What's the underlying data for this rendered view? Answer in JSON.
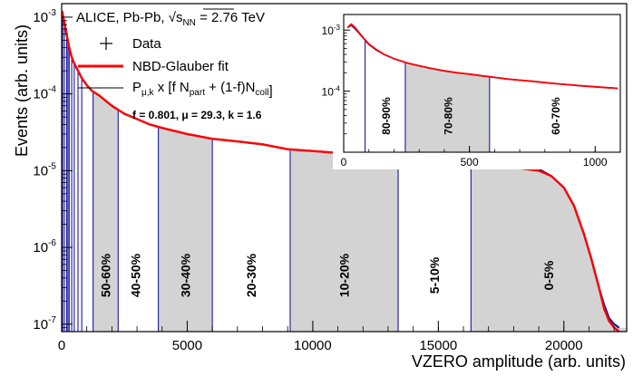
{
  "colors": {
    "data": "#1a1a8c",
    "fit": "#ff0000",
    "band_fill": "#d3d3d3",
    "band_edge": "#1a1aa0",
    "axis": "#000000"
  },
  "legend": {
    "title_prefix": "ALICE, Pb-Pb,",
    "sqrt_s": "s",
    "sqrt_s_sub": "NN",
    "energy": "= 2.76 TeV",
    "data_label": "Data",
    "fit_label": "NBD-Glauber fit",
    "model_P": "P",
    "model_P_sub": "μ,k",
    "model_mid1": "x [f N",
    "model_sub1": "part",
    "model_mid2": "+ (1-f)N",
    "model_sub2": "coll",
    "model_end": "]",
    "params": "f = 0.801,  μ = 29.3, k = 1.6"
  },
  "chart_data": [
    {
      "type": "line",
      "xlabel": "VZERO amplitude (arb. units)",
      "ylabel": "Events (arb. units)",
      "xlim": [
        0,
        22500
      ],
      "ylim": [
        8e-08,
        0.0015
      ],
      "yscale": "log",
      "xticks": [
        0,
        5000,
        10000,
        15000,
        20000
      ],
      "xtick_labels": [
        "0",
        "5000",
        "10000",
        "15000",
        "20000"
      ],
      "yticks": [
        1e-07,
        1e-06,
        1e-05,
        0.0001,
        0.001
      ],
      "ytick_labels": [
        [
          "10",
          "-7"
        ],
        [
          "10",
          "-6"
        ],
        [
          "10",
          "-5"
        ],
        [
          "10",
          "-4"
        ],
        [
          "10",
          "-3"
        ]
      ],
      "series": [
        {
          "name": "Data",
          "style": "data",
          "x": [
            20,
            100,
            200,
            300,
            400,
            500,
            650,
            800,
            1000,
            1200,
            1500,
            2000,
            2500,
            3000,
            3500,
            4000,
            5000,
            6000,
            7000,
            8000,
            9000,
            10000,
            11000,
            12000,
            13000,
            14000,
            15000,
            16000,
            17000,
            18000,
            19000,
            19500,
            20000,
            20400,
            20800,
            21100,
            21400,
            21600,
            21800,
            22000,
            22200
          ],
          "y": [
            0.0011,
            0.0009,
            0.0006,
            0.0004,
            0.0003,
            0.00025,
            0.0002,
            0.00016,
            0.00013,
            0.00011,
            9.5e-05,
            7e-05,
            5.5e-05,
            4.7e-05,
            4e-05,
            3.6e-05,
            3e-05,
            2.6e-05,
            2.4e-05,
            2.2e-05,
            1.9e-05,
            1.8e-05,
            1.7e-05,
            1.6e-05,
            1.5e-05,
            1.4e-05,
            1.3e-05,
            1.2e-05,
            1.15e-05,
            1.1e-05,
            1.05e-05,
            8.5e-06,
            6e-06,
            3.5e-06,
            1.5e-06,
            7e-07,
            3e-07,
            1.8e-07,
            1.2e-07,
            1e-07,
            9e-08
          ]
        },
        {
          "name": "NBD-Glauber fit",
          "style": "fit",
          "x": [
            20,
            100,
            200,
            300,
            400,
            500,
            650,
            800,
            1000,
            1200,
            1500,
            2000,
            2500,
            3000,
            3500,
            4000,
            5000,
            6000,
            7000,
            8000,
            9000,
            10000,
            11000,
            12000,
            13000,
            14000,
            15000,
            16000,
            17000,
            18000,
            19000,
            19500,
            20000,
            20400,
            20800,
            21100,
            21400,
            21600,
            21800,
            22000,
            22200
          ],
          "y": [
            0.0012,
            0.00085,
            0.0006,
            0.0004,
            0.0003,
            0.00025,
            0.0002,
            0.00016,
            0.00013,
            0.00011,
            9.5e-05,
            7e-05,
            5.5e-05,
            4.7e-05,
            4e-05,
            3.6e-05,
            3e-05,
            2.6e-05,
            2.4e-05,
            2.2e-05,
            1.9e-05,
            1.8e-05,
            1.7e-05,
            1.6e-05,
            1.5e-05,
            1.4e-05,
            1.3e-05,
            1.2e-05,
            1.15e-05,
            1.1e-05,
            1e-05,
            8.5e-06,
            6e-06,
            3.5e-06,
            1.5e-06,
            7e-07,
            3e-07,
            1.6e-07,
            1.1e-07,
            9e-08,
            8e-08
          ]
        }
      ],
      "bands": [
        {
          "label": "50-60%",
          "x0": 1250,
          "x1": 2250
        },
        {
          "label": "30-40%",
          "x0": 3850,
          "x1": 6000
        },
        {
          "label": "10-20%",
          "x0": 9100,
          "x1": 13400
        },
        {
          "label": "0-5%",
          "x0": 16300,
          "x1": 22500
        }
      ],
      "unshaded_labels": [
        {
          "label": "40-50%",
          "x": 2950
        },
        {
          "label": "20-30%",
          "x": 7550
        },
        {
          "label": "5-10%",
          "x": 14850
        }
      ],
      "edge_lines": [
        40,
        110,
        200,
        250,
        300,
        400,
        500,
        650,
        800,
        1250,
        2250,
        3850,
        6000,
        9100,
        13400,
        16300
      ]
    },
    {
      "type": "line",
      "xlim": [
        0,
        1100
      ],
      "ylim": [
        1e-05,
        0.0018
      ],
      "yscale": "log",
      "xticks": [
        0,
        500,
        1000
      ],
      "xtick_labels": [
        "0",
        "500",
        "1000"
      ],
      "yticks": [
        0.0001,
        0.001
      ],
      "ytick_labels": [
        [
          "10",
          "-4"
        ],
        [
          "10",
          "-3"
        ]
      ],
      "series": [
        {
          "name": "Data",
          "style": "data",
          "x": [
            15,
            30,
            45,
            60,
            80,
            100,
            130,
            160,
            200,
            250,
            300,
            350,
            400,
            450,
            500,
            550,
            600,
            650,
            700,
            750,
            800,
            850,
            900,
            950,
            1000,
            1050,
            1090
          ],
          "y": [
            0.0011,
            0.0012,
            0.00105,
            0.0009,
            0.00072,
            0.00058,
            0.00047,
            0.0004,
            0.00034,
            0.00029,
            0.00026,
            0.000235,
            0.000215,
            0.0002,
            0.00019,
            0.000178,
            0.000168,
            0.000158,
            0.000151,
            0.000145,
            0.000138,
            0.000132,
            0.000127,
            0.000122,
            0.000118,
            0.000114,
            0.000111
          ]
        },
        {
          "name": "NBD-Glauber fit",
          "style": "fit",
          "x": [
            15,
            30,
            45,
            60,
            80,
            100,
            130,
            160,
            200,
            250,
            300,
            350,
            400,
            450,
            500,
            550,
            600,
            650,
            700,
            750,
            800,
            850,
            900,
            950,
            1000,
            1050,
            1090
          ],
          "y": [
            0.0011,
            0.00125,
            0.0011,
            0.00092,
            0.00073,
            0.00059,
            0.00048,
            0.0004,
            0.00034,
            0.00029,
            0.00026,
            0.000235,
            0.000215,
            0.0002,
            0.00019,
            0.000178,
            0.000168,
            0.000158,
            0.000151,
            0.000145,
            0.000138,
            0.000132,
            0.000127,
            0.000122,
            0.000118,
            0.000114,
            0.000111
          ]
        }
      ],
      "bands": [
        {
          "label": "70-80%",
          "x0": 245,
          "x1": 580
        }
      ],
      "unshaded_labels": [
        {
          "label": "80-90%",
          "x": 165
        },
        {
          "label": "60-70%",
          "x": 840
        }
      ],
      "edge_lines": [
        85,
        245,
        580
      ]
    }
  ]
}
